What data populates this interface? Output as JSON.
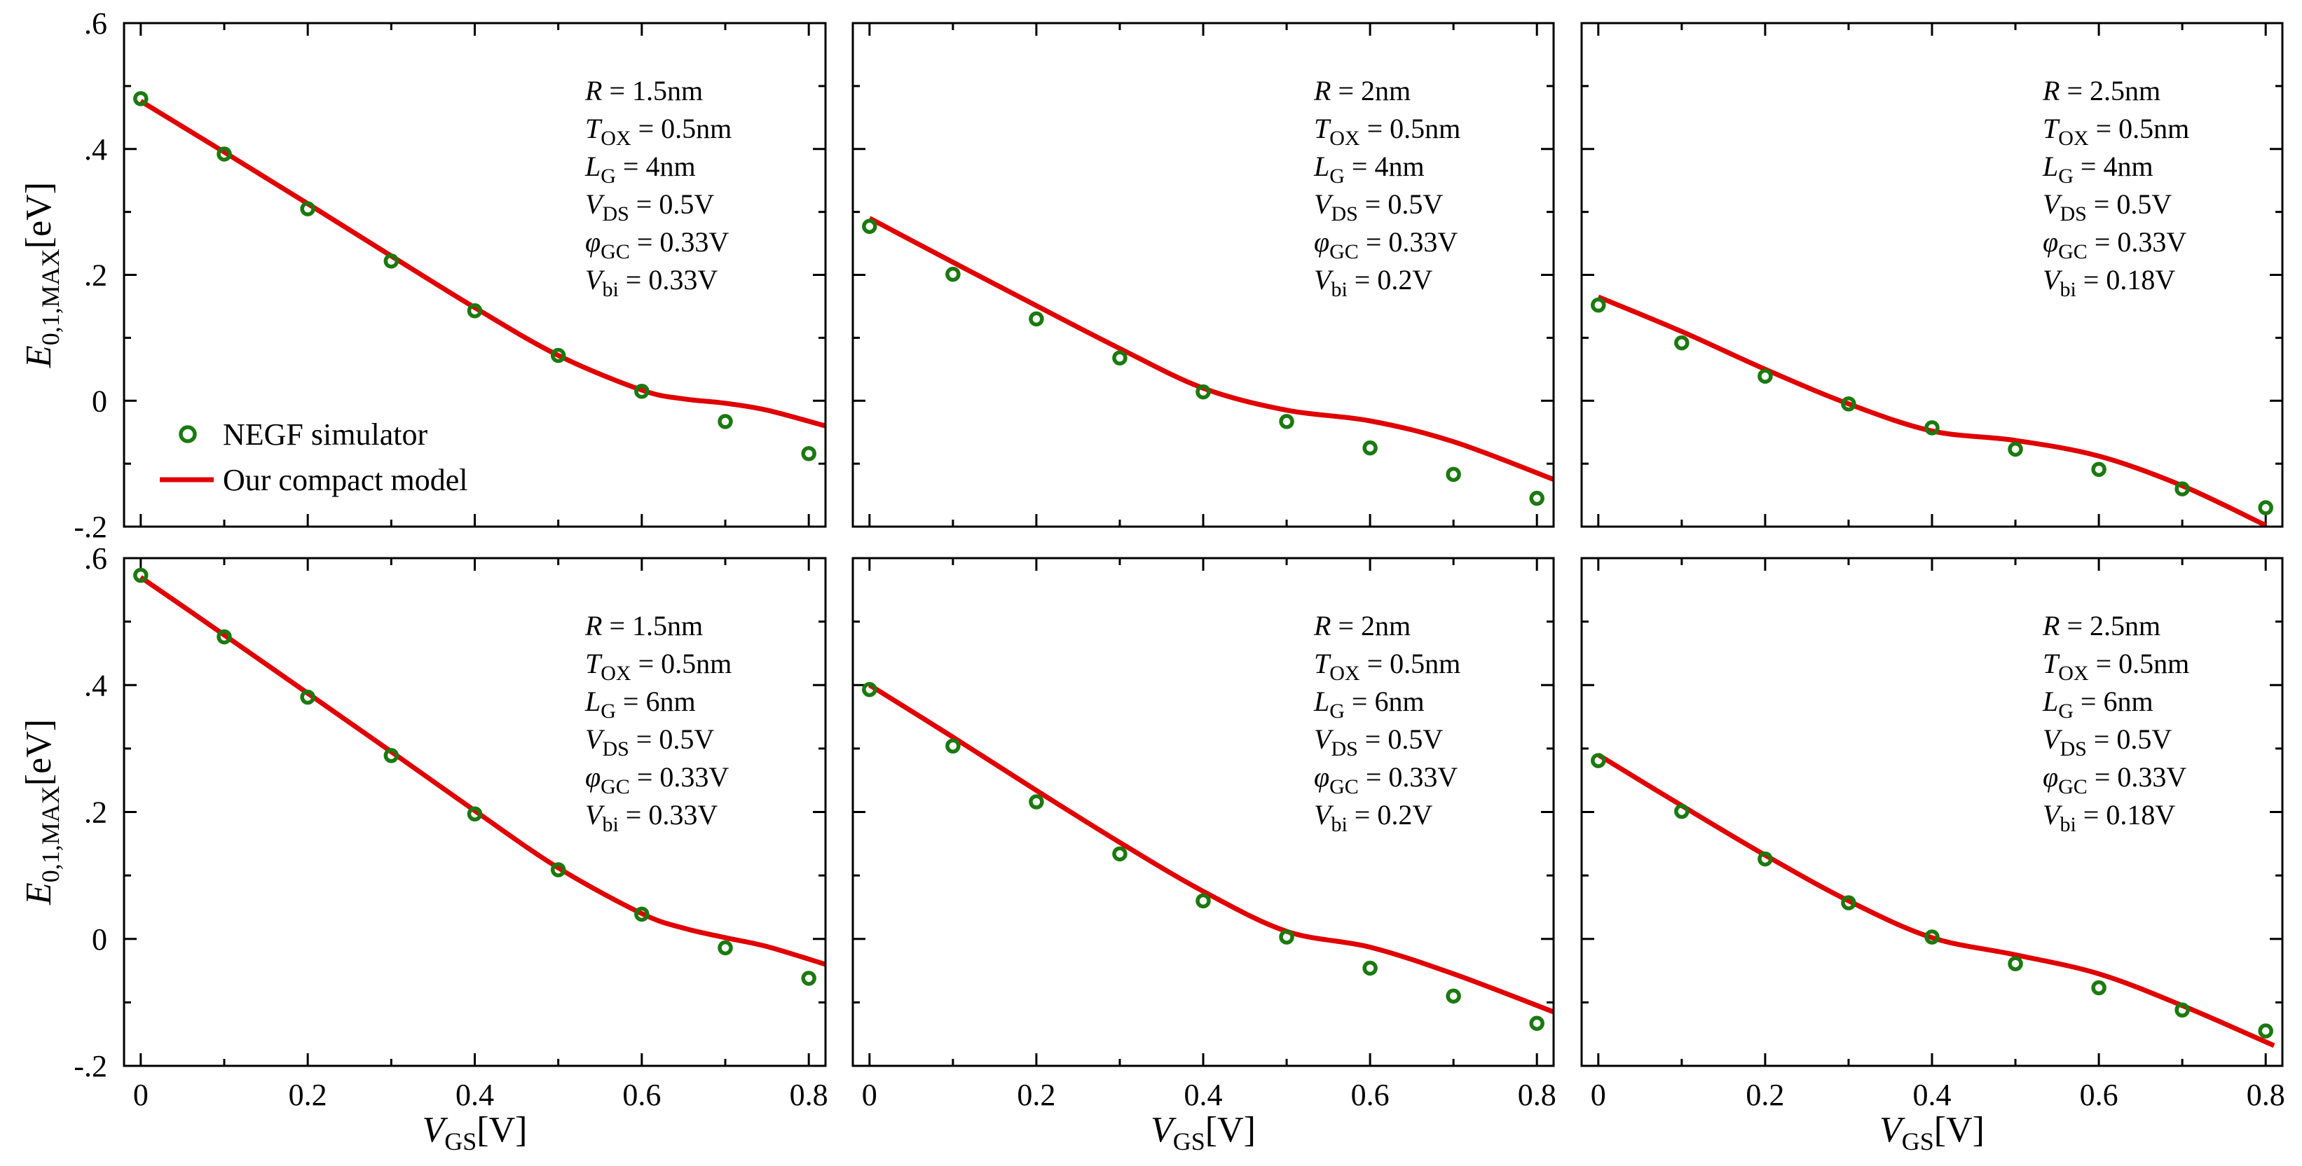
{
  "chart_data": [
    {
      "type": "scatter+line",
      "series": [
        {
          "name": "NEGF simulator",
          "kind": "markers",
          "x": [
            0,
            0.1,
            0.2,
            0.3,
            0.4,
            0.5,
            0.6,
            0.7,
            0.8
          ],
          "y": [
            0.48,
            0.392,
            0.305,
            0.222,
            0.143,
            0.072,
            0.015,
            -0.033,
            -0.084
          ]
        },
        {
          "name": "Our compact model",
          "kind": "line",
          "x": [
            0,
            0.1,
            0.2,
            0.3,
            0.4,
            0.5,
            0.6,
            0.65,
            0.7,
            0.75,
            0.82
          ],
          "y": [
            0.476,
            0.395,
            0.313,
            0.23,
            0.148,
            0.072,
            0.017,
            0.003,
            -0.004,
            -0.015,
            -0.04
          ]
        }
      ],
      "annotations": [
        {
          "sym": "R",
          "sub": "",
          "val": " = 1.5nm"
        },
        {
          "sym": "T",
          "sub": "OX",
          "val": " = 0.5nm"
        },
        {
          "sym": "L",
          "sub": "G",
          "val": " = 4nm"
        },
        {
          "sym": "V",
          "sub": "DS",
          "val": " = 0.5V"
        },
        {
          "sym": "φ",
          "sub": "GC",
          "val": " = 0.33V"
        },
        {
          "sym": "V",
          "sub": "bi",
          "val": " = 0.33V"
        }
      ],
      "xlim": [
        -0.02,
        0.82
      ],
      "ylim": [
        -0.2,
        0.6
      ],
      "xticks": [
        0,
        0.2,
        0.4,
        0.6,
        0.8
      ],
      "yticks": [
        -0.2,
        0,
        0.2,
        0.4,
        0.6
      ]
    },
    {
      "type": "scatter+line",
      "series": [
        {
          "name": "NEGF simulator",
          "kind": "markers",
          "x": [
            0,
            0.1,
            0.2,
            0.3,
            0.4,
            0.5,
            0.6,
            0.7,
            0.8
          ],
          "y": [
            0.277,
            0.201,
            0.13,
            0.068,
            0.014,
            -0.033,
            -0.075,
            -0.117,
            -0.155
          ]
        },
        {
          "name": "Our compact model",
          "kind": "line",
          "x": [
            0,
            0.1,
            0.2,
            0.3,
            0.4,
            0.5,
            0.6,
            0.7,
            0.82
          ],
          "y": [
            0.29,
            0.22,
            0.151,
            0.083,
            0.02,
            -0.015,
            -0.032,
            -0.065,
            -0.125
          ]
        }
      ],
      "annotations": [
        {
          "sym": "R",
          "sub": "",
          "val": " = 2nm"
        },
        {
          "sym": "T",
          "sub": "OX",
          "val": " = 0.5nm"
        },
        {
          "sym": "L",
          "sub": "G",
          "val": " = 4nm"
        },
        {
          "sym": "V",
          "sub": "DS",
          "val": " = 0.5V"
        },
        {
          "sym": "φ",
          "sub": "GC",
          "val": " = 0.33V"
        },
        {
          "sym": "V",
          "sub": "bi",
          "val": " = 0.2V"
        }
      ],
      "xlim": [
        -0.02,
        0.82
      ],
      "ylim": [
        -0.2,
        0.6
      ],
      "xticks": [
        0,
        0.2,
        0.4,
        0.6,
        0.8
      ],
      "yticks": [
        -0.2,
        0,
        0.2,
        0.4,
        0.6
      ]
    },
    {
      "type": "scatter+line",
      "series": [
        {
          "name": "NEGF simulator",
          "kind": "markers",
          "x": [
            0,
            0.1,
            0.2,
            0.3,
            0.4,
            0.5,
            0.6,
            0.7,
            0.8
          ],
          "y": [
            0.152,
            0.092,
            0.039,
            -0.005,
            -0.043,
            -0.077,
            -0.109,
            -0.14,
            -0.17
          ]
        },
        {
          "name": "Our compact model",
          "kind": "line",
          "x": [
            0,
            0.1,
            0.2,
            0.3,
            0.4,
            0.5,
            0.6,
            0.7,
            0.8
          ],
          "y": [
            0.165,
            0.11,
            0.05,
            -0.005,
            -0.048,
            -0.063,
            -0.088,
            -0.135,
            -0.198
          ]
        }
      ],
      "annotations": [
        {
          "sym": "R",
          "sub": "",
          "val": " = 2.5nm"
        },
        {
          "sym": "T",
          "sub": "OX",
          "val": " = 0.5nm"
        },
        {
          "sym": "L",
          "sub": "G",
          "val": " = 4nm"
        },
        {
          "sym": "V",
          "sub": "DS",
          "val": " = 0.5V"
        },
        {
          "sym": "φ",
          "sub": "GC",
          "val": " = 0.33V"
        },
        {
          "sym": "V",
          "sub": "bi",
          "val": " = 0.18V"
        }
      ],
      "xlim": [
        -0.02,
        0.82
      ],
      "ylim": [
        -0.2,
        0.6
      ],
      "xticks": [
        0,
        0.2,
        0.4,
        0.6,
        0.8
      ],
      "yticks": [
        -0.2,
        0,
        0.2,
        0.4,
        0.6
      ]
    },
    {
      "type": "scatter+line",
      "series": [
        {
          "name": "NEGF simulator",
          "kind": "markers",
          "x": [
            0,
            0.1,
            0.2,
            0.3,
            0.4,
            0.5,
            0.6,
            0.7,
            0.8
          ],
          "y": [
            0.573,
            0.476,
            0.381,
            0.289,
            0.197,
            0.109,
            0.039,
            -0.014,
            -0.062
          ]
        },
        {
          "name": "Our compact model",
          "kind": "line",
          "x": [
            0,
            0.1,
            0.2,
            0.3,
            0.4,
            0.5,
            0.6,
            0.65,
            0.7,
            0.75,
            0.82
          ],
          "y": [
            0.57,
            0.479,
            0.387,
            0.295,
            0.202,
            0.112,
            0.04,
            0.017,
            0.002,
            -0.012,
            -0.04
          ]
        }
      ],
      "annotations": [
        {
          "sym": "R",
          "sub": "",
          "val": " = 1.5nm"
        },
        {
          "sym": "T",
          "sub": "OX",
          "val": " = 0.5nm"
        },
        {
          "sym": "L",
          "sub": "G",
          "val": " = 6nm"
        },
        {
          "sym": "V",
          "sub": "DS",
          "val": " = 0.5V"
        },
        {
          "sym": "φ",
          "sub": "GC",
          "val": " = 0.33V"
        },
        {
          "sym": "V",
          "sub": "bi",
          "val": " = 0.33V"
        }
      ],
      "xlim": [
        -0.02,
        0.82
      ],
      "ylim": [
        -0.2,
        0.6
      ],
      "xticks": [
        0,
        0.2,
        0.4,
        0.6,
        0.8
      ],
      "yticks": [
        -0.2,
        0,
        0.2,
        0.4,
        0.6
      ]
    },
    {
      "type": "scatter+line",
      "series": [
        {
          "name": "NEGF simulator",
          "kind": "markers",
          "x": [
            0,
            0.1,
            0.2,
            0.3,
            0.4,
            0.5,
            0.6,
            0.7,
            0.8
          ],
          "y": [
            0.393,
            0.304,
            0.216,
            0.134,
            0.06,
            0.003,
            -0.046,
            -0.09,
            -0.133
          ]
        },
        {
          "name": "Our compact model",
          "kind": "line",
          "x": [
            0,
            0.1,
            0.2,
            0.3,
            0.4,
            0.5,
            0.6,
            0.7,
            0.82
          ],
          "y": [
            0.4,
            0.318,
            0.234,
            0.152,
            0.075,
            0.012,
            -0.013,
            -0.055,
            -0.115
          ]
        }
      ],
      "annotations": [
        {
          "sym": "R",
          "sub": "",
          "val": " = 2nm"
        },
        {
          "sym": "T",
          "sub": "OX",
          "val": " = 0.5nm"
        },
        {
          "sym": "L",
          "sub": "G",
          "val": " = 6nm"
        },
        {
          "sym": "V",
          "sub": "DS",
          "val": " = 0.5V"
        },
        {
          "sym": "φ",
          "sub": "GC",
          "val": " = 0.33V"
        },
        {
          "sym": "V",
          "sub": "bi",
          "val": " = 0.2V"
        }
      ],
      "xlim": [
        -0.02,
        0.82
      ],
      "ylim": [
        -0.2,
        0.6
      ],
      "xticks": [
        0,
        0.2,
        0.4,
        0.6,
        0.8
      ],
      "yticks": [
        -0.2,
        0,
        0.2,
        0.4,
        0.6
      ]
    },
    {
      "type": "scatter+line",
      "series": [
        {
          "name": "NEGF simulator",
          "kind": "markers",
          "x": [
            0,
            0.1,
            0.2,
            0.3,
            0.4,
            0.5,
            0.6,
            0.7,
            0.8
          ],
          "y": [
            0.281,
            0.201,
            0.126,
            0.057,
            0.003,
            -0.039,
            -0.077,
            -0.112,
            -0.145
          ]
        },
        {
          "name": "Our compact model",
          "kind": "line",
          "x": [
            0,
            0.1,
            0.2,
            0.3,
            0.4,
            0.5,
            0.6,
            0.7,
            0.81
          ],
          "y": [
            0.29,
            0.21,
            0.132,
            0.06,
            0.002,
            -0.025,
            -0.055,
            -0.105,
            -0.168
          ]
        }
      ],
      "annotations": [
        {
          "sym": "R",
          "sub": "",
          "val": " = 2.5nm"
        },
        {
          "sym": "T",
          "sub": "OX",
          "val": " = 0.5nm"
        },
        {
          "sym": "L",
          "sub": "G",
          "val": " = 6nm"
        },
        {
          "sym": "V",
          "sub": "DS",
          "val": " = 0.5V"
        },
        {
          "sym": "φ",
          "sub": "GC",
          "val": " = 0.33V"
        },
        {
          "sym": "V",
          "sub": "bi",
          "val": " = 0.18V"
        }
      ],
      "xlim": [
        -0.02,
        0.82
      ],
      "ylim": [
        -0.2,
        0.6
      ],
      "xticks": [
        0,
        0.2,
        0.4,
        0.6,
        0.8
      ],
      "yticks": [
        -0.2,
        0,
        0.2,
        0.4,
        0.6
      ]
    }
  ],
  "labels": {
    "ylabel_main": "E",
    "ylabel_sub": "0,1,MAX",
    "ylabel_unit": "[eV]",
    "xlabel_main": "V",
    "xlabel_sub": "GS",
    "xlabel_unit": "[V]"
  },
  "legend": {
    "marker_label": "NEGF simulator",
    "line_label": "Our compact model"
  },
  "colors": {
    "marker": "#1a7a0f",
    "line": "#e00000",
    "axes": "#000000"
  }
}
